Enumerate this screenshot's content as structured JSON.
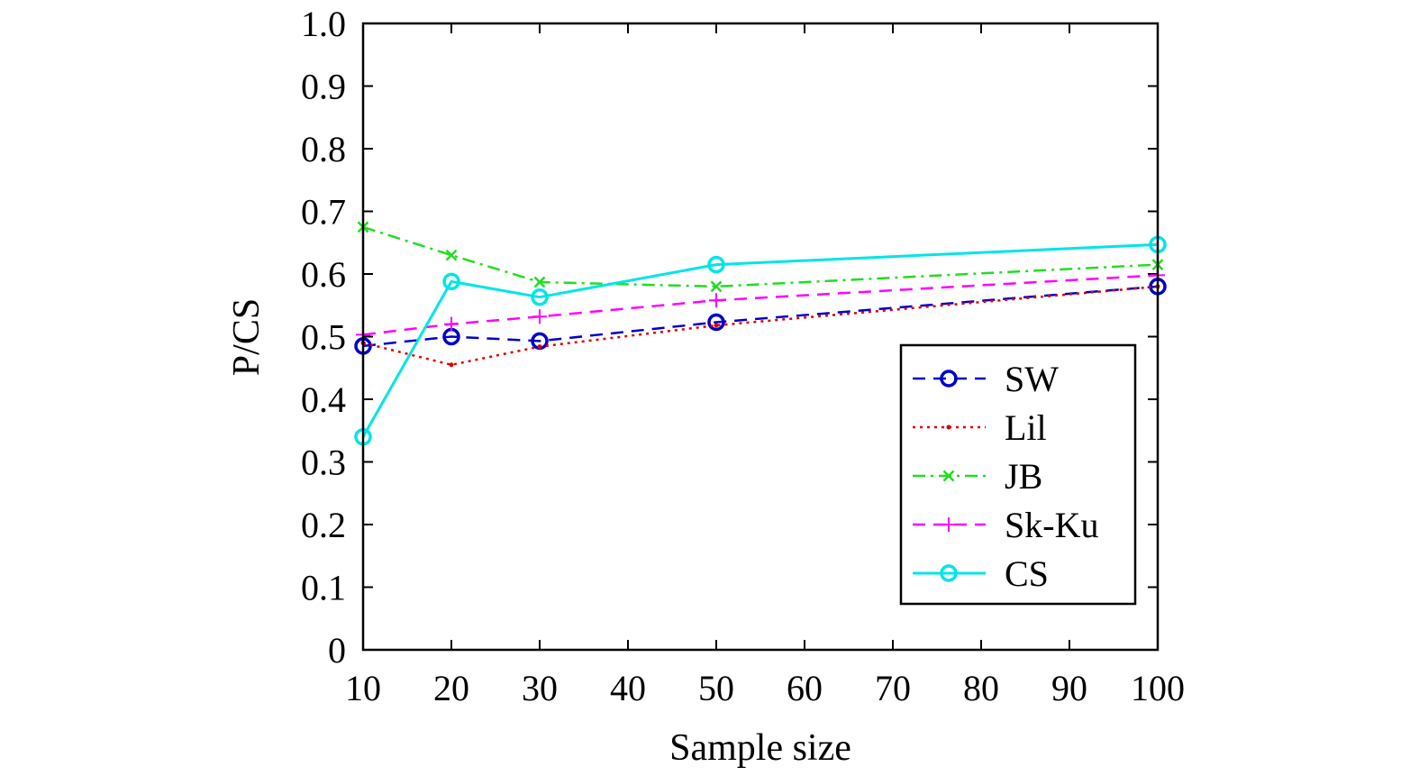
{
  "chart_data": {
    "type": "line",
    "title": "",
    "xlabel": "Sample size",
    "ylabel": "P/CS",
    "x": [
      10,
      20,
      30,
      50,
      100
    ],
    "xticks": [
      "10",
      "20",
      "30",
      "40",
      "50",
      "60",
      "70",
      "80",
      "90",
      "100"
    ],
    "yticks": [
      "0",
      "0.1",
      "0.2",
      "0.3",
      "0.4",
      "0.5",
      "0.6",
      "0.7",
      "0.8",
      "0.9",
      "1.0"
    ],
    "ylim": [
      0,
      1.0
    ],
    "grid": false,
    "legend_position": "right",
    "series": [
      {
        "name": "SW",
        "values": [
          0.485,
          0.5,
          0.493,
          0.523,
          0.58
        ],
        "color": "#0000c8",
        "dash": "dashed",
        "marker": "circle"
      },
      {
        "name": "Lil",
        "values": [
          0.49,
          0.455,
          0.484,
          0.518,
          0.58
        ],
        "color": "#dd0000",
        "dash": "dotted",
        "marker": "dot"
      },
      {
        "name": "JB",
        "values": [
          0.675,
          0.63,
          0.587,
          0.58,
          0.615
        ],
        "color": "#22dd22",
        "dash": "dashdot",
        "marker": "x"
      },
      {
        "name": "Sk-Ku",
        "values": [
          0.503,
          0.52,
          0.532,
          0.558,
          0.598
        ],
        "color": "#ff00ff",
        "dash": "dashed",
        "marker": "plus"
      },
      {
        "name": "CS",
        "values": [
          0.34,
          0.588,
          0.563,
          0.615,
          0.647
        ],
        "color": "#00e5e5",
        "dash": "solid",
        "marker": "circle"
      }
    ]
  }
}
